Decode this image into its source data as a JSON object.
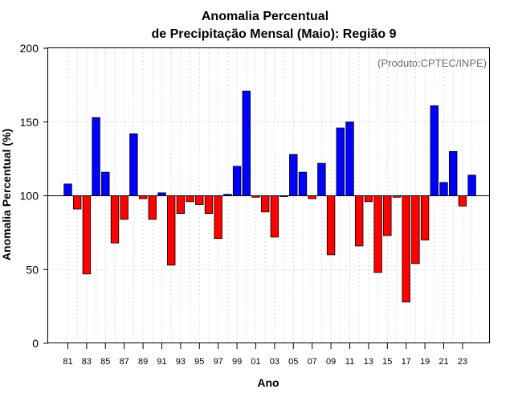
{
  "chart_data": {
    "type": "bar",
    "title_line1": "Anomalia Percentual",
    "title_line2": "de Precipitação Mensal (Maio): Região 9",
    "xlabel": "Ano",
    "ylabel": "Anomalia Percentual (%)",
    "annotation": "(Produto:CPTEC/INPE)",
    "baseline": 100,
    "ylim": [
      0,
      200
    ],
    "yticks": [
      0,
      50,
      100,
      150,
      200
    ],
    "xtick_labels": [
      "81",
      "83",
      "85",
      "87",
      "89",
      "91",
      "93",
      "95",
      "97",
      "99",
      "01",
      "03",
      "05",
      "07",
      "09",
      "11",
      "13",
      "15",
      "17",
      "19",
      "21",
      "23"
    ],
    "categories": [
      "1981",
      "1982",
      "1983",
      "1984",
      "1985",
      "1986",
      "1987",
      "1988",
      "1989",
      "1990",
      "1991",
      "1992",
      "1993",
      "1994",
      "1995",
      "1996",
      "1997",
      "1998",
      "1999",
      "2000",
      "2001",
      "2002",
      "2003",
      "2004",
      "2005",
      "2006",
      "2007",
      "2008",
      "2009",
      "2010",
      "2011",
      "2012",
      "2013",
      "2014",
      "2015",
      "2016",
      "2017",
      "2018",
      "2019",
      "2020",
      "2021",
      "2022",
      "2023",
      "2024"
    ],
    "values": [
      108,
      91,
      47,
      153,
      116,
      68,
      84,
      142,
      98,
      84,
      102,
      53,
      88,
      96,
      94,
      88,
      71,
      101,
      120,
      171,
      99,
      89,
      72,
      100,
      128,
      116,
      98,
      122,
      60,
      146,
      150,
      66,
      96,
      48,
      73,
      99,
      28,
      54,
      70,
      161,
      109,
      130,
      93,
      114
    ],
    "colors": {
      "above": "#0000ff",
      "below": "#ff0000"
    },
    "grid": true
  }
}
